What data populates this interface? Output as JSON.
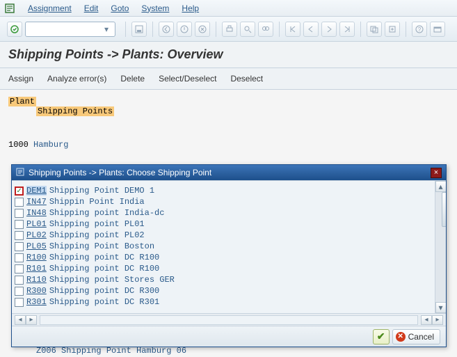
{
  "menubar": {
    "items": [
      "Assignment",
      "Edit",
      "Goto",
      "System",
      "Help"
    ]
  },
  "title": "Shipping Points -> Plants: Overview",
  "action_bar": [
    "Assign",
    "Analyze error(s)",
    "Delete",
    "Select/Deselect",
    "Deselect"
  ],
  "header": {
    "plant_label": "Plant",
    "shipping_points_label": "Shipping Points"
  },
  "plant_line": {
    "code": "1000",
    "name": "Hamburg"
  },
  "dialog": {
    "title": "Shipping Points -> Plants: Choose Shipping Point",
    "rows": [
      {
        "checked": true,
        "selected": true,
        "code": "DEM1",
        "desc": "Shipping Point DEMO 1"
      },
      {
        "checked": false,
        "selected": false,
        "code": "IN47",
        "desc": "Shippin Point India"
      },
      {
        "checked": false,
        "selected": false,
        "code": "IN48",
        "desc": "Shipping point India-dc"
      },
      {
        "checked": false,
        "selected": false,
        "code": "PL01",
        "desc": "Shipping point PL01"
      },
      {
        "checked": false,
        "selected": false,
        "code": "PL02",
        "desc": "Shipping point PL02"
      },
      {
        "checked": false,
        "selected": false,
        "code": "PL05",
        "desc": "Shipping Point Boston"
      },
      {
        "checked": false,
        "selected": false,
        "code": "R100",
        "desc": "Shipping point DC R100"
      },
      {
        "checked": false,
        "selected": false,
        "code": "R101",
        "desc": "Shipping point DC R100"
      },
      {
        "checked": false,
        "selected": false,
        "code": "R110",
        "desc": "Shipping point Stores GER"
      },
      {
        "checked": false,
        "selected": false,
        "code": "R300",
        "desc": "Shipping point DC R300"
      },
      {
        "checked": false,
        "selected": false,
        "code": "R301",
        "desc": "Shipping point DC R301"
      }
    ],
    "cancel_label": "Cancel"
  },
  "bottom_rows": [
    {
      "code": "Z006",
      "desc": "Shipping Point Hamburg 06"
    }
  ]
}
